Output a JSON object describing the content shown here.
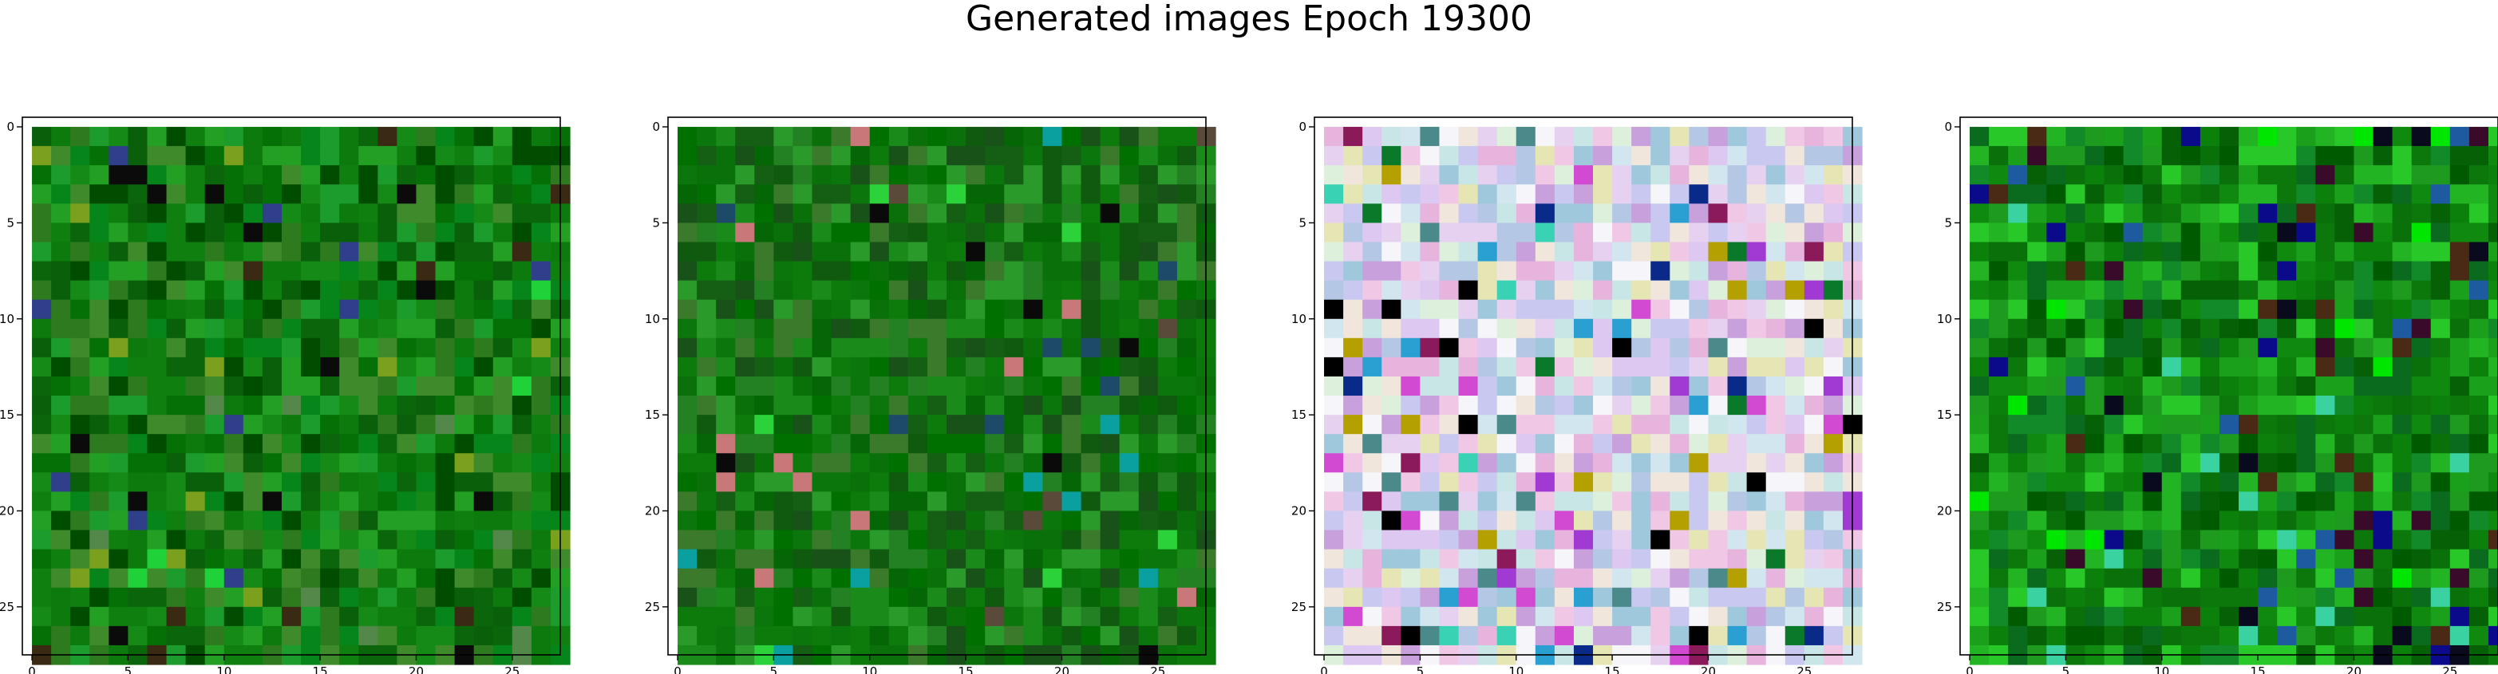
{
  "suptitle": "Generated images Epoch 19300",
  "chart_data": [
    {
      "type": "heatmap",
      "title": "",
      "grid_size": [
        28,
        28
      ],
      "xlim": [
        -0.5,
        27.5
      ],
      "ylim": [
        27.5,
        -0.5
      ],
      "xticks": [
        0,
        5,
        10,
        15,
        20,
        25
      ],
      "yticks": [
        0,
        5,
        10,
        15,
        20,
        25
      ],
      "palette": [
        "#0c7a0c",
        "#057005",
        "#168a16",
        "#0a5f0a",
        "#23a023",
        "#0f800f",
        "#3f8a2a",
        "#004d00",
        "#1c9c2c",
        "#0b660b",
        "#2e7a1e",
        "#06861a"
      ],
      "accents": [
        "#0b0b0b",
        "#3a2a14",
        "#54884a",
        "#2f3f8a",
        "#7aa01e",
        "#1fd23a"
      ],
      "accent_rate": 0.08,
      "seed": 11
    },
    {
      "type": "heatmap",
      "title": "",
      "grid_size": [
        28,
        28
      ],
      "xlim": [
        -0.5,
        27.5
      ],
      "ylim": [
        27.5,
        -0.5
      ],
      "xticks": [
        0,
        5,
        10,
        15,
        20,
        25
      ],
      "yticks": [
        0,
        5,
        10,
        15,
        20,
        25
      ],
      "palette": [
        "#0a700a",
        "#0c7b0c",
        "#145f14",
        "#1a8a1a",
        "#056605",
        "#238023",
        "#0f5a0f",
        "#2a9a2a",
        "#0b760b",
        "#3a7a2a",
        "#007000",
        "#195219"
      ],
      "accents": [
        "#0a0a0a",
        "#1e4a6a",
        "#c87878",
        "#5a4a3a",
        "#0aa0a0",
        "#2cd23a"
      ],
      "accent_rate": 0.06,
      "seed": 29
    },
    {
      "type": "heatmap",
      "title": "",
      "grid_size": [
        28,
        28
      ],
      "xlim": [
        -0.5,
        27.5
      ],
      "ylim": [
        27.5,
        -0.5
      ],
      "xticks": [
        0,
        5,
        10,
        15,
        20,
        25
      ],
      "yticks": [
        0,
        5,
        10,
        15,
        20,
        25
      ],
      "palette": [
        "#e6d2f0",
        "#c8c8f0",
        "#f0c8e6",
        "#d2e6f0",
        "#dcf0dc",
        "#f0e6dc",
        "#b4c8e6",
        "#e6b4dc",
        "#f5f5fa",
        "#c8e6e6",
        "#dcc8f0",
        "#e6e6b4",
        "#c8a0dc",
        "#a0c8dc"
      ],
      "accents": [
        "#000000",
        "#0a2a8a",
        "#d24ad2",
        "#3ad2b4",
        "#8a1a5a",
        "#a03ad2",
        "#2aa0d2",
        "#0a7a2a",
        "#b4a000",
        "#4a8a8a"
      ],
      "accent_rate": 0.14,
      "seed": 47
    },
    {
      "type": "heatmap",
      "title": "",
      "grid_size": [
        28,
        28
      ],
      "xlim": [
        -0.5,
        27.5
      ],
      "ylim": [
        27.5,
        -0.5
      ],
      "xticks": [
        0,
        5,
        10,
        15,
        20,
        25
      ],
      "yticks": [
        0,
        5,
        10,
        15,
        20,
        25
      ],
      "palette": [
        "#0a700a",
        "#0f8a0f",
        "#1aa01a",
        "#066006",
        "#23b423",
        "#0c780c",
        "#128a2a",
        "#005a00",
        "#28c828",
        "#0a6a1e",
        "#1e9a1e",
        "#0b800b"
      ],
      "accents": [
        "#0a0a1e",
        "#0a0a8a",
        "#3a0a2a",
        "#1e5aa0",
        "#4a2a14",
        "#3ad2a0",
        "#00e600"
      ],
      "accent_rate": 0.12,
      "seed": 83
    }
  ]
}
